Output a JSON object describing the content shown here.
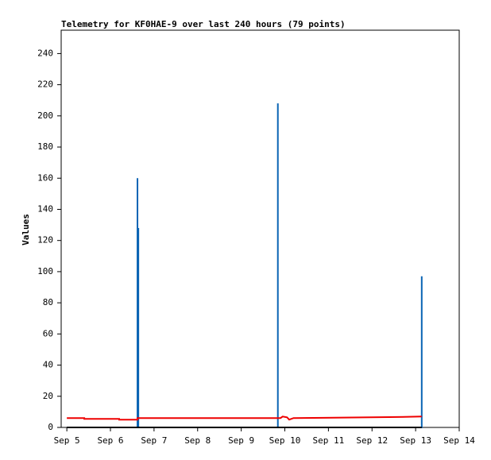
{
  "chart_data": {
    "type": "line",
    "title": "Telemetry for KF0HAE-9 over last 240 hours (79 points)",
    "ylabel": "Values",
    "xlim": [
      4.87,
      14
    ],
    "ylim": [
      0,
      255
    ],
    "xticks": [
      {
        "value": 5,
        "label": "Sep 5"
      },
      {
        "value": 6,
        "label": "Sep 6"
      },
      {
        "value": 7,
        "label": "Sep 7"
      },
      {
        "value": 8,
        "label": "Sep 8"
      },
      {
        "value": 9,
        "label": "Sep 9"
      },
      {
        "value": 10,
        "label": "Sep 10"
      },
      {
        "value": 11,
        "label": "Sep 11"
      },
      {
        "value": 12,
        "label": "Sep 12"
      },
      {
        "value": 13,
        "label": "Sep 13"
      },
      {
        "value": 14,
        "label": "Sep 14"
      }
    ],
    "yticks": [
      0,
      20,
      40,
      60,
      80,
      100,
      120,
      140,
      160,
      180,
      200,
      220,
      240
    ],
    "grid": false,
    "series": [
      {
        "color": "#0a64b4",
        "width": 2,
        "x": [
          5,
          6.62,
          6.62,
          6.62,
          6.64,
          6.64,
          6.64,
          9.84,
          9.84,
          9.84,
          13.14,
          13.14
        ],
        "values": [
          0,
          0,
          160,
          0,
          0,
          128,
          0,
          0,
          208,
          0,
          0,
          97
        ]
      },
      {
        "color": "#000000",
        "width": 2,
        "x": [
          5,
          13.14
        ],
        "values": [
          0,
          0
        ]
      },
      {
        "color": "#ee0000",
        "width": 2,
        "x": [
          5,
          5.4,
          5.4,
          6.2,
          6.2,
          6.62,
          6.62,
          9.9,
          9.95,
          10.05,
          10.1,
          10.2,
          10.9,
          12.4,
          13.14
        ],
        "values": [
          6,
          6,
          5.5,
          5.5,
          5,
          5,
          6,
          6,
          7,
          6.5,
          5,
          6,
          6.2,
          6.6,
          7
        ]
      }
    ]
  }
}
